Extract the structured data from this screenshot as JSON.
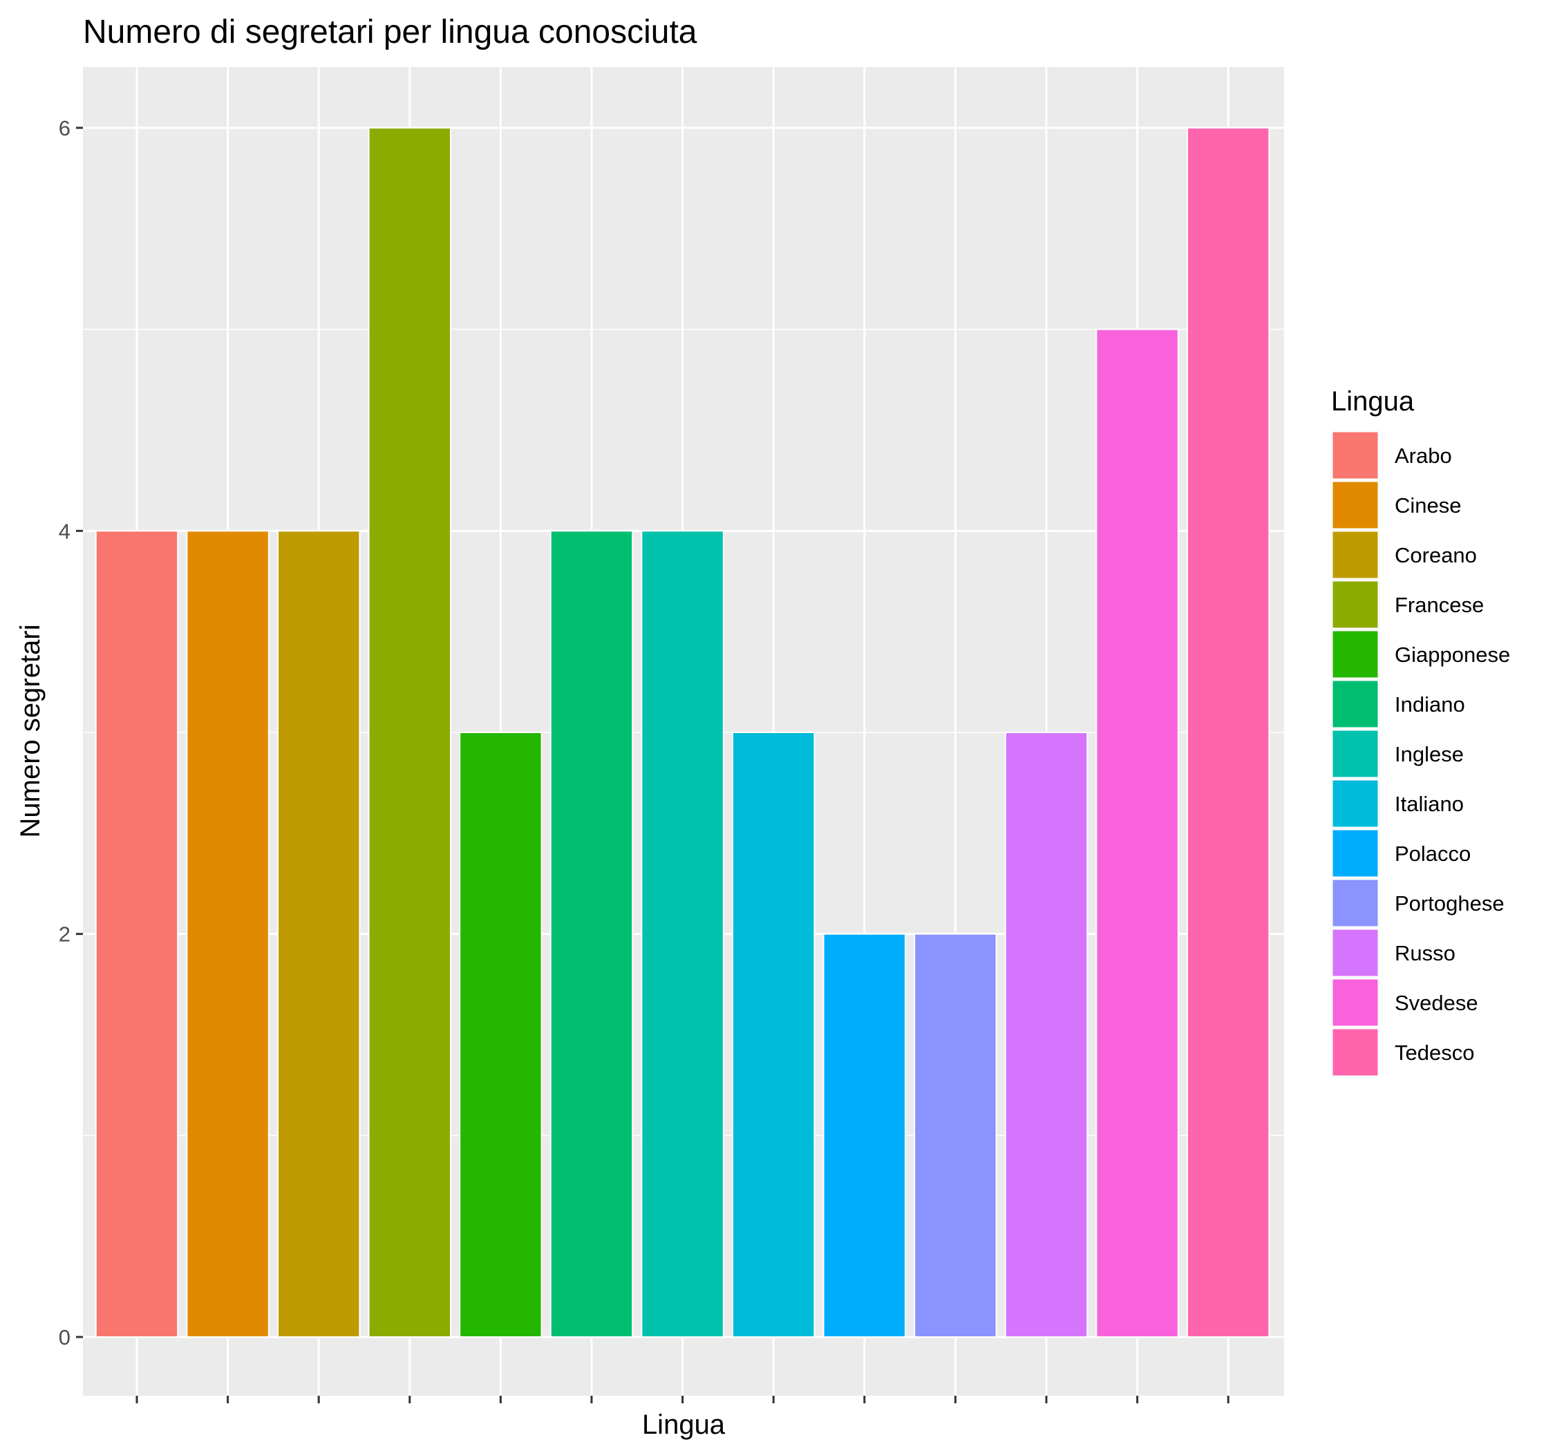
{
  "chart_data": {
    "type": "bar",
    "title": "Numero di segretari per lingua conosciuta",
    "xlabel": "Lingua",
    "ylabel": "Numero segretari",
    "categories": [
      "Arabo",
      "Cinese",
      "Coreano",
      "Francese",
      "Giapponese",
      "Indiano",
      "Inglese",
      "Italiano",
      "Polacco",
      "Portoghese",
      "Russo",
      "Svedese",
      "Tedesco"
    ],
    "values": [
      4,
      4,
      4,
      6,
      3,
      4,
      4,
      3,
      2,
      2,
      3,
      5,
      6
    ],
    "colors": [
      "#F8766D",
      "#E18A00",
      "#BE9C00",
      "#8CAB00",
      "#24B700",
      "#00BE70",
      "#00C1AB",
      "#00BBDA",
      "#00ACFC",
      "#8B93FF",
      "#D575FE",
      "#F962DD",
      "#FF65AC"
    ],
    "y_ticks": [
      0,
      2,
      4,
      6
    ],
    "ylim": [
      -0.3,
      6.3
    ],
    "x_tick_labels_shown": false,
    "legend": {
      "title": "Lingua",
      "placement": "right"
    },
    "grid": true,
    "panel_background": "#EBEBEB",
    "grid_color": "#FFFFFF"
  }
}
